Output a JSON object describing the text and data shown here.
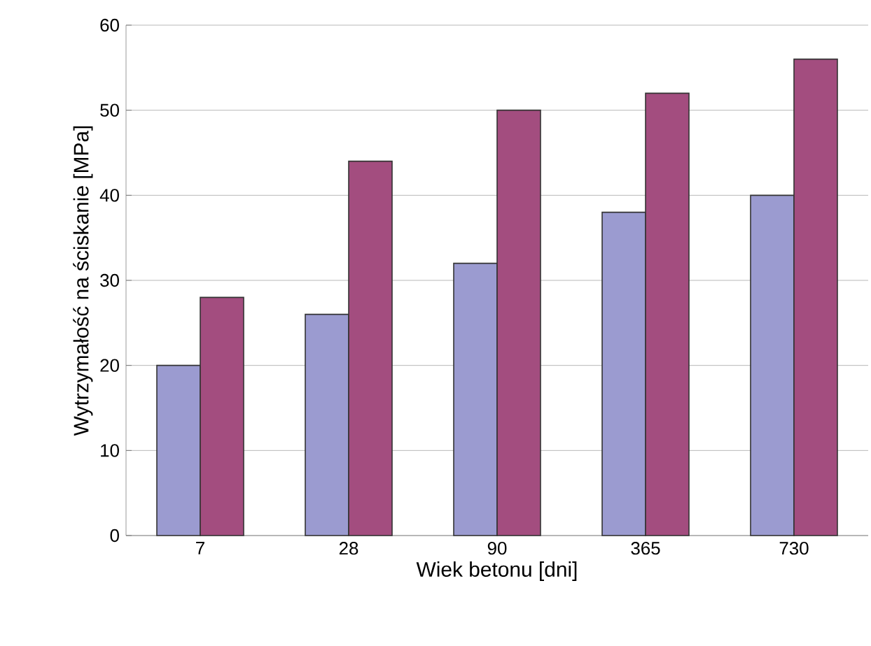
{
  "chart_data": {
    "type": "bar",
    "xlabel": "Wiek betonu [dni]",
    "ylabel": "Wytrzymałość na ściskanie [MPa]",
    "categories": [
      "7",
      "28",
      "90",
      "365",
      "730"
    ],
    "series": [
      {
        "color": "#9b9bd0",
        "values": [
          20,
          26,
          32,
          38,
          40
        ]
      },
      {
        "color": "#a34d7f",
        "values": [
          28,
          44,
          50,
          52,
          56
        ]
      }
    ],
    "ylim": [
      0,
      60
    ],
    "yticks": [
      0,
      10,
      20,
      30,
      40,
      50,
      60
    ],
    "grid": "y"
  }
}
